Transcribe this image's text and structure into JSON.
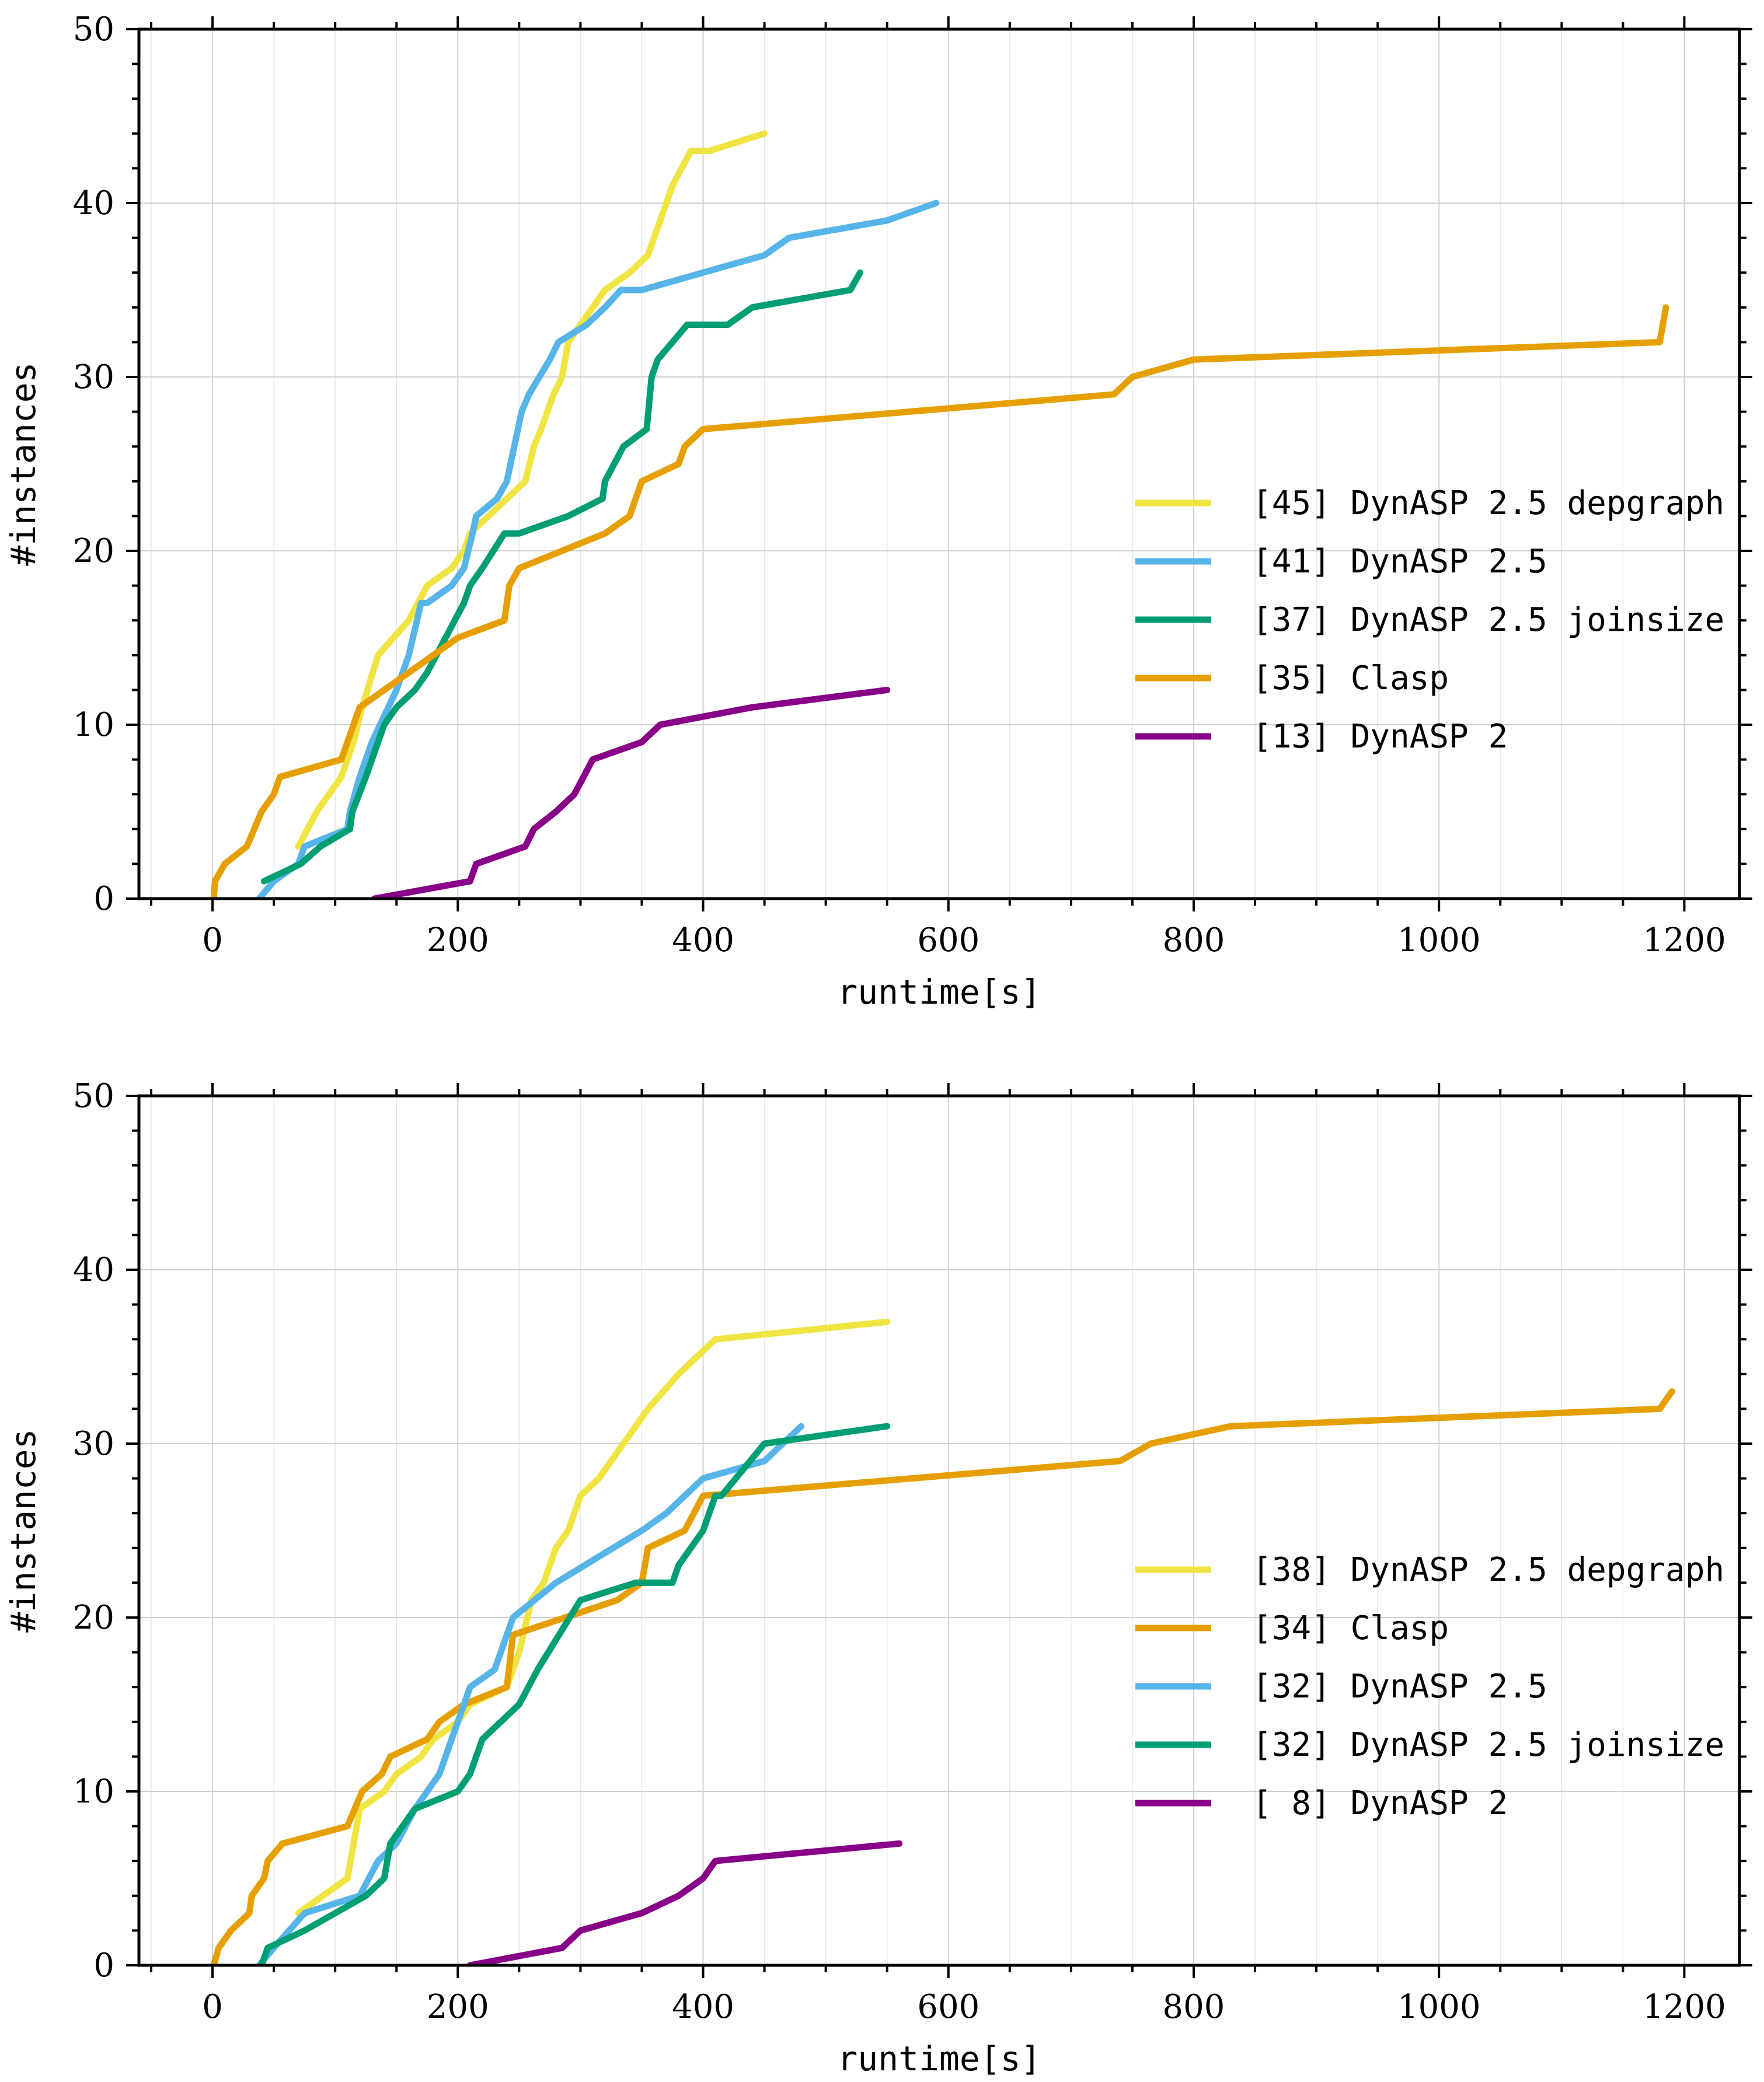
{
  "chart_data": [
    {
      "type": "line",
      "xlabel": "runtime[s]",
      "ylabel": "#instances",
      "xlim": [
        -60,
        1245
      ],
      "ylim": [
        0,
        50
      ],
      "xticks": [
        0,
        200,
        400,
        600,
        800,
        1000,
        1200
      ],
      "yticks": [
        0,
        10,
        20,
        30,
        40,
        50
      ],
      "grid": true,
      "legend_position": "center-right",
      "series": [
        {
          "name": "[45] DynASP 2.5 depgraph",
          "color": "#f0e442",
          "x": [
            70,
            85,
            95,
            105,
            115,
            122,
            135,
            160,
            175,
            195,
            205,
            210,
            240,
            255,
            262,
            268,
            278,
            285,
            290,
            300,
            320,
            340,
            355,
            365,
            370,
            375,
            390,
            405,
            450
          ],
          "y": [
            3,
            5,
            6,
            7,
            9,
            11,
            14,
            16,
            18,
            19,
            20,
            21,
            23,
            24,
            26,
            27,
            29,
            30,
            32,
            33,
            35,
            36,
            37,
            39,
            40,
            41,
            43,
            43,
            44
          ]
        },
        {
          "name": "[41] DynASP 2.5",
          "color": "#56b4e9",
          "x": [
            38,
            50,
            70,
            75,
            110,
            112,
            120,
            130,
            150,
            160,
            170,
            175,
            195,
            205,
            212,
            215,
            232,
            240,
            252,
            258,
            275,
            282,
            305,
            320,
            333,
            350,
            400,
            450,
            470,
            550,
            590
          ],
          "y": [
            0,
            1,
            2,
            3,
            4,
            5,
            7,
            9,
            12,
            14,
            17,
            17,
            18,
            19,
            21,
            22,
            23,
            24,
            28,
            29,
            31,
            32,
            33,
            34,
            35,
            35,
            36,
            37,
            38,
            39,
            40
          ],
          "y_note": "last point rises to 40"
        },
        {
          "name": "[37] DynASP 2.5 joinsize",
          "color": "#009e73",
          "x": [
            42,
            72,
            88,
            112,
            114,
            125,
            140,
            150,
            165,
            175,
            190,
            205,
            210,
            220,
            238,
            250,
            290,
            318,
            320,
            335,
            354,
            358,
            363,
            375,
            387,
            420,
            440,
            520,
            528
          ],
          "y": [
            1,
            2,
            3,
            4,
            5,
            7,
            10,
            11,
            12,
            13,
            15,
            17,
            18,
            19,
            21,
            21,
            22,
            23,
            24,
            26,
            27,
            30,
            31,
            32,
            33,
            33,
            34,
            35,
            36
          ]
        },
        {
          "name": "[35] Clasp",
          "color": "#e69f00",
          "x": [
            1,
            2,
            10,
            28,
            40,
            50,
            55,
            105,
            110,
            120,
            140,
            160,
            200,
            238,
            242,
            250,
            320,
            340,
            350,
            380,
            385,
            400,
            735,
            750,
            800,
            1180,
            1185
          ],
          "y": [
            0,
            1,
            2,
            3,
            5,
            6,
            7,
            8,
            9,
            11,
            12,
            13,
            15,
            16,
            18,
            19,
            21,
            22,
            24,
            25,
            26,
            27,
            29,
            30,
            31,
            32,
            34
          ]
        },
        {
          "name": "[13] DynASP 2",
          "color": "#880088",
          "x": [
            132,
            210,
            215,
            255,
            262,
            280,
            295,
            310,
            350,
            365,
            440,
            550
          ],
          "y": [
            0,
            1,
            2,
            3,
            4,
            5,
            6,
            8,
            9,
            10,
            11,
            12
          ]
        }
      ]
    },
    {
      "type": "line",
      "xlabel": "runtime[s]",
      "ylabel": "#instances",
      "xlim": [
        -60,
        1245
      ],
      "ylim": [
        0,
        50
      ],
      "xticks": [
        0,
        200,
        400,
        600,
        800,
        1000,
        1200
      ],
      "yticks": [
        0,
        10,
        20,
        30,
        40,
        50
      ],
      "grid": true,
      "legend_position": "center-right",
      "series": [
        {
          "name": "[38] DynASP 2.5 depgraph",
          "color": "#f0e442",
          "x": [
            70,
            110,
            115,
            120,
            140,
            150,
            170,
            180,
            200,
            210,
            240,
            250,
            260,
            270,
            280,
            290,
            300,
            315,
            345,
            355,
            380,
            410,
            550
          ],
          "y": [
            3,
            5,
            7,
            9,
            10,
            11,
            12,
            13,
            14,
            15,
            16,
            18,
            21,
            22,
            24,
            25,
            27,
            28,
            31,
            32,
            34,
            36,
            37
          ]
        },
        {
          "name": "[34] Clasp",
          "color": "#e69f00",
          "x": [
            1,
            5,
            15,
            30,
            32,
            42,
            45,
            57,
            110,
            122,
            138,
            145,
            175,
            185,
            205,
            240,
            245,
            330,
            350,
            355,
            385,
            400,
            740,
            765,
            830,
            1180,
            1190
          ],
          "y": [
            0,
            1,
            2,
            3,
            4,
            5,
            6,
            7,
            8,
            10,
            11,
            12,
            13,
            14,
            15,
            16,
            19,
            21,
            22,
            24,
            25,
            27,
            29,
            30,
            31,
            32,
            33
          ]
        },
        {
          "name": "[32] DynASP 2.5",
          "color": "#56b4e9",
          "x": [
            38,
            50,
            75,
            120,
            135,
            150,
            165,
            185,
            195,
            210,
            230,
            240,
            245,
            280,
            350,
            370,
            400,
            450,
            480
          ],
          "y": [
            0,
            1,
            3,
            4,
            6,
            7,
            9,
            11,
            13,
            16,
            17,
            19,
            20,
            22,
            25,
            26,
            28,
            29,
            31
          ]
        },
        {
          "name": "[32] DynASP 2.5 joinsize",
          "color": "#009e73",
          "x": [
            40,
            45,
            75,
            100,
            125,
            140,
            145,
            165,
            200,
            210,
            220,
            250,
            265,
            300,
            345,
            375,
            380,
            400,
            405,
            410,
            415,
            450,
            550
          ],
          "y": [
            0,
            1,
            2,
            3,
            4,
            5,
            7,
            9,
            10,
            11,
            13,
            15,
            17,
            21,
            22,
            22,
            23,
            25,
            26,
            27,
            27,
            30,
            31
          ]
        },
        {
          "name": "[ 8] DynASP 2",
          "color": "#880088",
          "x": [
            210,
            285,
            300,
            350,
            380,
            400,
            410,
            560
          ],
          "y": [
            0,
            1,
            2,
            3,
            4,
            5,
            6,
            7
          ]
        }
      ]
    }
  ]
}
